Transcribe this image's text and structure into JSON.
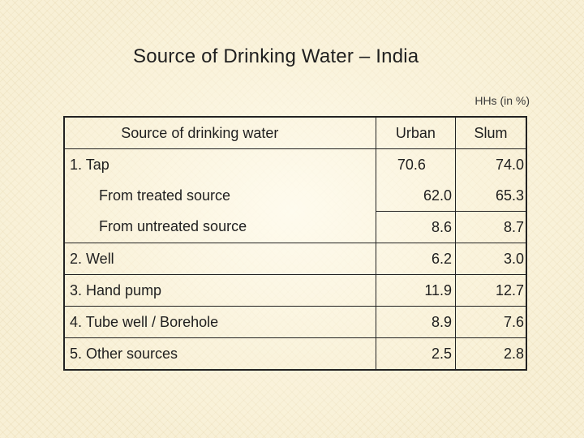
{
  "title": "Source of Drinking Water – India",
  "unit_note": "HHs (in %)",
  "table": {
    "headers": [
      "Source of drinking water",
      "Urban",
      "Slum"
    ],
    "rows": [
      {
        "label": "1. Tap",
        "urban": "70.6",
        "slum": "74.0"
      },
      {
        "label": "From treated source",
        "urban": "62.0",
        "slum": "65.3"
      },
      {
        "label": "From untreated source",
        "urban": "8.6",
        "slum": "8.7"
      },
      {
        "label": "2. Well",
        "urban": "6.2",
        "slum": "3.0"
      },
      {
        "label": "3. Hand pump",
        "urban": "11.9",
        "slum": "12.7"
      },
      {
        "label": "4. Tube well / Borehole",
        "urban": "8.9",
        "slum": "7.6"
      },
      {
        "label": "5. Other sources",
        "urban": "2.5",
        "slum": "2.8"
      }
    ]
  }
}
